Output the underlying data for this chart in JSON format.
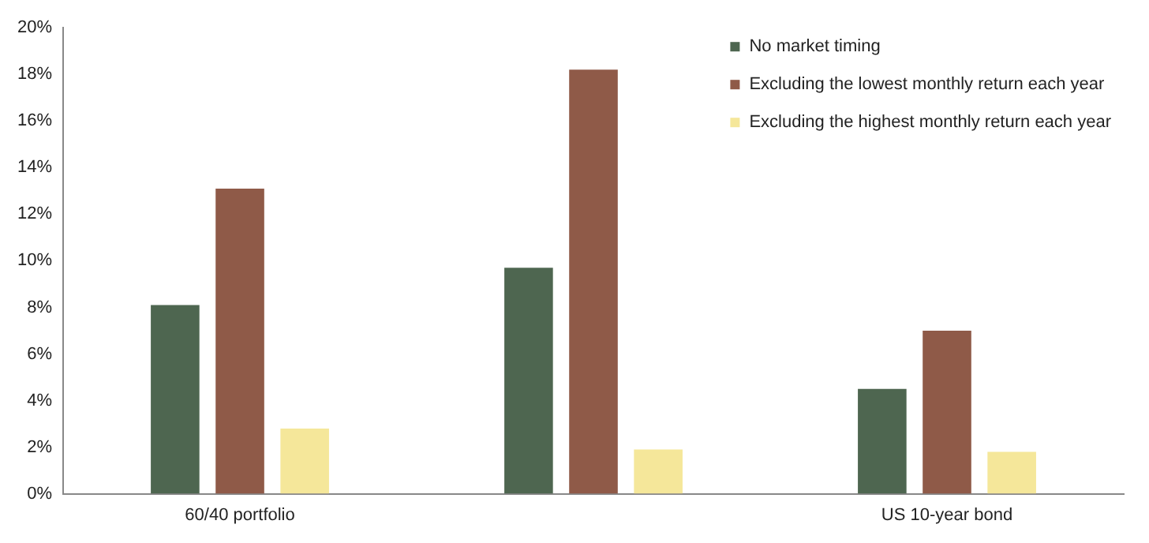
{
  "chart_data": {
    "type": "bar",
    "categories": [
      "60/40 portfolio",
      null,
      "US 10-year bond"
    ],
    "series": [
      {
        "name": "No market timing",
        "color": "#4e6650",
        "values": [
          8.1,
          9.7,
          4.5
        ]
      },
      {
        "name": "Excluding the lowest monthly return each year",
        "color": "#8f5a48",
        "values": [
          13.1,
          18.2,
          7.0
        ]
      },
      {
        "name": "Excluding the highest monthly return each year",
        "color": "#f5e79a",
        "values": [
          2.8,
          1.9,
          1.8
        ]
      }
    ],
    "ylim": [
      0,
      20
    ],
    "yticks": [
      {
        "value": 0,
        "label": "0%"
      },
      {
        "value": 2,
        "label": "2%"
      },
      {
        "value": 4,
        "label": "4%"
      },
      {
        "value": 6,
        "label": "6%"
      },
      {
        "value": 8,
        "label": "8%"
      },
      {
        "value": 10,
        "label": "10%"
      },
      {
        "value": 12,
        "label": "12%"
      },
      {
        "value": 14,
        "label": "14%"
      },
      {
        "value": 16,
        "label": "16%"
      },
      {
        "value": 18,
        "label": "18%"
      },
      {
        "value": 20,
        "label": "20%"
      }
    ],
    "grid": false,
    "legend": "top right"
  }
}
